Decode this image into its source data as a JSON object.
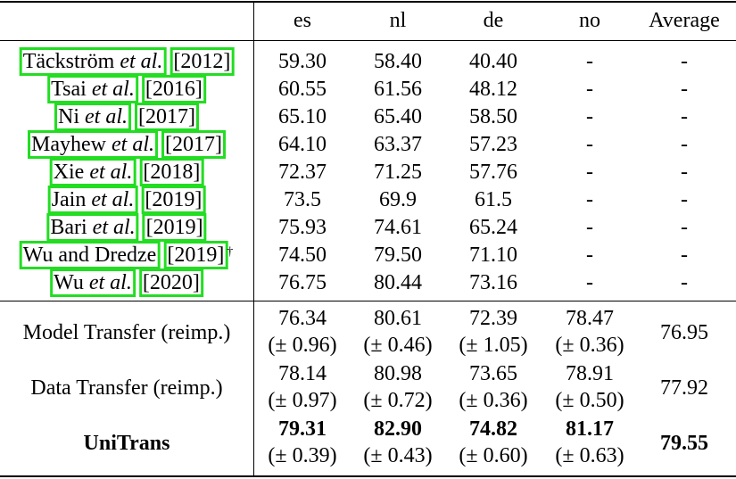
{
  "header": {
    "columns": [
      "es",
      "nl",
      "de",
      "no",
      "Average"
    ]
  },
  "baselines": [
    {
      "name": "Täckström",
      "etal": "et al.",
      "year": "[2012]",
      "sup": "",
      "values": [
        "59.30",
        "58.40",
        "40.40",
        "-",
        "-"
      ]
    },
    {
      "name": "Tsai",
      "etal": "et al.",
      "year": "[2016]",
      "sup": "",
      "values": [
        "60.55",
        "61.56",
        "48.12",
        "-",
        "-"
      ]
    },
    {
      "name": "Ni",
      "etal": "et al.",
      "year": "[2017]",
      "sup": "",
      "values": [
        "65.10",
        "65.40",
        "58.50",
        "-",
        "-"
      ]
    },
    {
      "name": "Mayhew",
      "etal": "et al.",
      "year": "[2017]",
      "sup": "",
      "values": [
        "64.10",
        "63.37",
        "57.23",
        "-",
        "-"
      ]
    },
    {
      "name": "Xie",
      "etal": "et al.",
      "year": "[2018]",
      "sup": "",
      "values": [
        "72.37",
        "71.25",
        "57.76",
        "-",
        "-"
      ]
    },
    {
      "name": "Jain",
      "etal": "et al.",
      "year": "[2019]",
      "sup": "",
      "values": [
        "73.5",
        "69.9",
        "61.5",
        "-",
        "-"
      ]
    },
    {
      "name": "Bari",
      "etal": "et al.",
      "year": "[2019]",
      "sup": "",
      "values": [
        "75.93",
        "74.61",
        "65.24",
        "-",
        "-"
      ]
    },
    {
      "name": "Wu and Dredze",
      "etal": "",
      "year": "[2019]",
      "sup": "†",
      "values": [
        "74.50",
        "79.50",
        "71.10",
        "-",
        "-"
      ]
    },
    {
      "name": "Wu",
      "etal": "et al.",
      "year": "[2020]",
      "sup": "",
      "values": [
        "76.75",
        "80.44",
        "73.16",
        "-",
        "-"
      ]
    }
  ],
  "methods": [
    {
      "name": "Model Transfer (reimp.)",
      "values": [
        "76.34",
        "80.61",
        "72.39",
        "78.47"
      ],
      "stds": [
        "(± 0.96)",
        "(± 0.46)",
        "(± 1.05)",
        "(± 0.36)"
      ],
      "average": "76.95",
      "bold": false
    },
    {
      "name": "Data Transfer (reimp.)",
      "values": [
        "78.14",
        "80.98",
        "73.65",
        "78.91"
      ],
      "stds": [
        "(± 0.97)",
        "(± 0.72)",
        "(± 0.36)",
        "(± 0.50)"
      ],
      "average": "77.92",
      "bold": false
    },
    {
      "name": "UniTrans",
      "values": [
        "79.31",
        "82.90",
        "74.82",
        "81.17"
      ],
      "stds": [
        "(± 0.39)",
        "(± 0.43)",
        "(± 0.60)",
        "(± 0.63)"
      ],
      "average": "79.55",
      "bold": true
    }
  ]
}
